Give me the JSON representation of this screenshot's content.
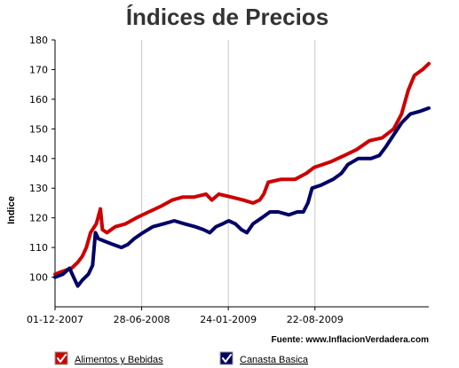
{
  "chart_data": {
    "type": "line",
    "title": "Índices de Precios",
    "ylabel": "Indice",
    "ylim": [
      90,
      180
    ],
    "yticks": [
      100,
      110,
      120,
      130,
      140,
      150,
      160,
      170,
      180
    ],
    "x_tick_labels": [
      "01-12-2007",
      "28-06-2008",
      "24-01-2009",
      "22-08-2009"
    ],
    "x_range": [
      "2007-12-01",
      "2010-05-25"
    ],
    "grid": "vertical",
    "legend_position": "bottom-left",
    "source": "Fuente: www.InflacionVerdadera.com",
    "series": [
      {
        "name": "Alimentos y Bebidas",
        "color": "#cc0000",
        "points": [
          [
            "2007-12-01",
            101
          ],
          [
            "2007-12-20",
            102
          ],
          [
            "2008-01-10",
            103
          ],
          [
            "2008-01-25",
            105
          ],
          [
            "2008-02-05",
            107
          ],
          [
            "2008-02-15",
            110
          ],
          [
            "2008-02-25",
            115
          ],
          [
            "2008-03-10",
            118
          ],
          [
            "2008-03-20",
            123
          ],
          [
            "2008-03-25",
            116
          ],
          [
            "2008-04-05",
            115
          ],
          [
            "2008-04-25",
            117
          ],
          [
            "2008-05-20",
            118
          ],
          [
            "2008-06-15",
            120
          ],
          [
            "2008-07-15",
            122
          ],
          [
            "2008-08-15",
            124
          ],
          [
            "2008-09-10",
            126
          ],
          [
            "2008-10-05",
            127
          ],
          [
            "2008-11-01",
            127
          ],
          [
            "2008-12-01",
            128
          ],
          [
            "2008-12-15",
            126
          ],
          [
            "2009-01-01",
            128
          ],
          [
            "2009-02-01",
            127
          ],
          [
            "2009-03-01",
            126
          ],
          [
            "2009-03-25",
            125
          ],
          [
            "2009-04-10",
            126
          ],
          [
            "2009-04-20",
            128
          ],
          [
            "2009-05-01",
            132
          ],
          [
            "2009-06-01",
            133
          ],
          [
            "2009-06-20",
            133
          ],
          [
            "2009-07-05",
            133
          ],
          [
            "2009-08-01",
            135
          ],
          [
            "2009-08-20",
            137
          ],
          [
            "2009-09-10",
            138
          ],
          [
            "2009-10-01",
            139
          ],
          [
            "2009-11-01",
            141
          ],
          [
            "2009-12-01",
            143
          ],
          [
            "2010-01-01",
            146
          ],
          [
            "2010-02-01",
            147
          ],
          [
            "2010-03-01",
            150
          ],
          [
            "2010-03-20",
            155
          ],
          [
            "2010-04-05",
            163
          ],
          [
            "2010-04-20",
            168
          ],
          [
            "2010-05-10",
            170
          ],
          [
            "2010-05-25",
            172
          ]
        ]
      },
      {
        "name": "Canasta Basica",
        "color": "#000066",
        "points": [
          [
            "2007-12-01",
            100
          ],
          [
            "2007-12-20",
            101
          ],
          [
            "2008-01-05",
            103
          ],
          [
            "2008-01-15",
            100
          ],
          [
            "2008-01-25",
            97
          ],
          [
            "2008-02-05",
            99
          ],
          [
            "2008-02-20",
            101
          ],
          [
            "2008-03-01",
            104
          ],
          [
            "2008-03-08",
            115
          ],
          [
            "2008-03-15",
            113
          ],
          [
            "2008-04-01",
            112
          ],
          [
            "2008-04-20",
            111
          ],
          [
            "2008-05-10",
            110
          ],
          [
            "2008-05-25",
            111
          ],
          [
            "2008-06-10",
            113
          ],
          [
            "2008-07-01",
            115
          ],
          [
            "2008-07-25",
            117
          ],
          [
            "2008-08-20",
            118
          ],
          [
            "2008-09-15",
            119
          ],
          [
            "2008-10-10",
            118
          ],
          [
            "2008-11-05",
            117
          ],
          [
            "2008-11-25",
            116
          ],
          [
            "2008-12-10",
            115
          ],
          [
            "2008-12-25",
            117
          ],
          [
            "2009-01-10",
            118
          ],
          [
            "2009-01-25",
            119
          ],
          [
            "2009-02-10",
            118
          ],
          [
            "2009-02-25",
            116
          ],
          [
            "2009-03-10",
            115
          ],
          [
            "2009-03-25",
            118
          ],
          [
            "2009-04-15",
            120
          ],
          [
            "2009-05-05",
            122
          ],
          [
            "2009-05-25",
            122
          ],
          [
            "2009-06-20",
            121
          ],
          [
            "2009-07-10",
            122
          ],
          [
            "2009-07-25",
            122
          ],
          [
            "2009-08-05",
            125
          ],
          [
            "2009-08-15",
            130
          ],
          [
            "2009-09-05",
            131
          ],
          [
            "2009-10-05",
            133
          ],
          [
            "2009-10-25",
            135
          ],
          [
            "2009-11-10",
            138
          ],
          [
            "2009-12-05",
            140
          ],
          [
            "2010-01-05",
            140
          ],
          [
            "2010-01-25",
            141
          ],
          [
            "2010-02-10",
            144
          ],
          [
            "2010-03-01",
            148
          ],
          [
            "2010-03-20",
            152
          ],
          [
            "2010-04-10",
            155
          ],
          [
            "2010-05-05",
            156
          ],
          [
            "2010-05-25",
            157
          ]
        ]
      }
    ]
  }
}
